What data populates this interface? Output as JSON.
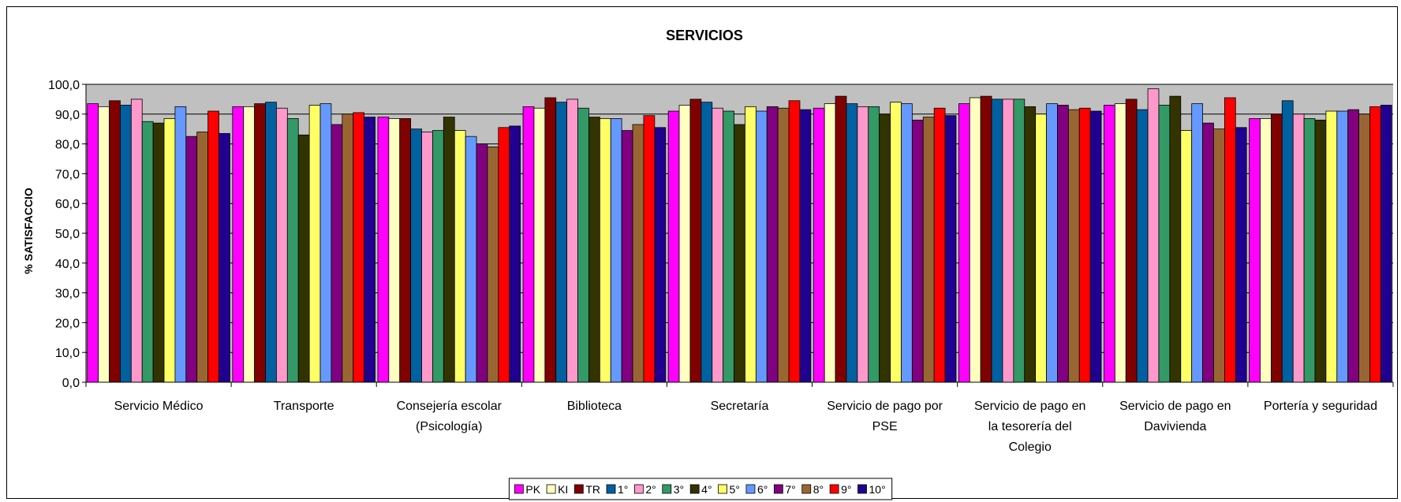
{
  "chart_data": {
    "type": "bar",
    "title": "SERVICIOS",
    "xlabel": "",
    "ylabel": "% SATISFACCIO",
    "ylim": [
      0,
      100
    ],
    "ytick_step": 10,
    "ytick_labels": [
      "0,0",
      "10,0",
      "20,0",
      "30,0",
      "40,0",
      "50,0",
      "60,0",
      "70,0",
      "80,0",
      "90,0",
      "100,0"
    ],
    "plot_background": "#c0c0c0",
    "grid": true,
    "legend_position": "bottom-center",
    "categories": [
      [
        "Servicio Médico"
      ],
      [
        "Transporte"
      ],
      [
        "Consejería escolar",
        "(Psicología)"
      ],
      [
        "Biblioteca"
      ],
      [
        "Secretaría"
      ],
      [
        "Servicio de pago por",
        "PSE"
      ],
      [
        "Servicio de pago en",
        "la tesorería del",
        "Colegio"
      ],
      [
        "Servicio de pago en",
        "Davivienda"
      ],
      [
        "Portería y seguridad"
      ]
    ],
    "series": [
      {
        "name": "PK",
        "color": "#ff00ff",
        "values": [
          93.5,
          92.5,
          89.0,
          92.5,
          91.0,
          92.0,
          93.5,
          93.0,
          88.5
        ]
      },
      {
        "name": "KI",
        "color": "#ffffc0",
        "values": [
          92.5,
          92.5,
          88.5,
          92.0,
          93.0,
          93.5,
          95.5,
          93.5,
          88.5
        ]
      },
      {
        "name": "TR",
        "color": "#800000",
        "values": [
          94.5,
          93.5,
          88.5,
          95.5,
          95.0,
          96.0,
          96.0,
          95.0,
          90.0
        ]
      },
      {
        "name": "1°",
        "color": "#0060a0",
        "values": [
          93.0,
          94.0,
          85.0,
          94.0,
          94.0,
          93.5,
          95.0,
          91.5,
          94.5
        ]
      },
      {
        "name": "2°",
        "color": "#ff99cc",
        "values": [
          95.0,
          92.0,
          84.0,
          95.0,
          92.0,
          92.5,
          95.0,
          98.5,
          90.0
        ]
      },
      {
        "name": "3°",
        "color": "#339966",
        "values": [
          87.5,
          88.5,
          84.5,
          92.0,
          91.0,
          92.5,
          95.0,
          93.0,
          88.5
        ]
      },
      {
        "name": "4°",
        "color": "#333300",
        "values": [
          87.0,
          83.0,
          89.0,
          89.0,
          86.5,
          90.0,
          92.5,
          96.0,
          88.0
        ]
      },
      {
        "name": "5°",
        "color": "#ffff66",
        "values": [
          88.5,
          93.0,
          84.5,
          88.5,
          92.5,
          94.0,
          90.0,
          84.5,
          91.0
        ]
      },
      {
        "name": "6°",
        "color": "#6699ff",
        "values": [
          92.5,
          93.5,
          82.5,
          88.5,
          91.0,
          93.5,
          93.5,
          93.5,
          91.0
        ]
      },
      {
        "name": "7°",
        "color": "#800080",
        "values": [
          82.5,
          86.5,
          80.0,
          84.5,
          92.5,
          88.0,
          93.0,
          87.0,
          91.5
        ]
      },
      {
        "name": "8°",
        "color": "#996633",
        "values": [
          84.0,
          90.0,
          79.0,
          86.5,
          92.0,
          89.0,
          91.5,
          85.0,
          90.0
        ]
      },
      {
        "name": "9°",
        "color": "#ff0000",
        "values": [
          91.0,
          90.5,
          85.5,
          89.5,
          94.5,
          92.0,
          92.0,
          95.5,
          92.5
        ]
      },
      {
        "name": "10°",
        "color": "#200090",
        "values": [
          83.5,
          89.0,
          86.0,
          85.5,
          91.5,
          89.5,
          91.0,
          85.5,
          93.0
        ]
      }
    ]
  }
}
